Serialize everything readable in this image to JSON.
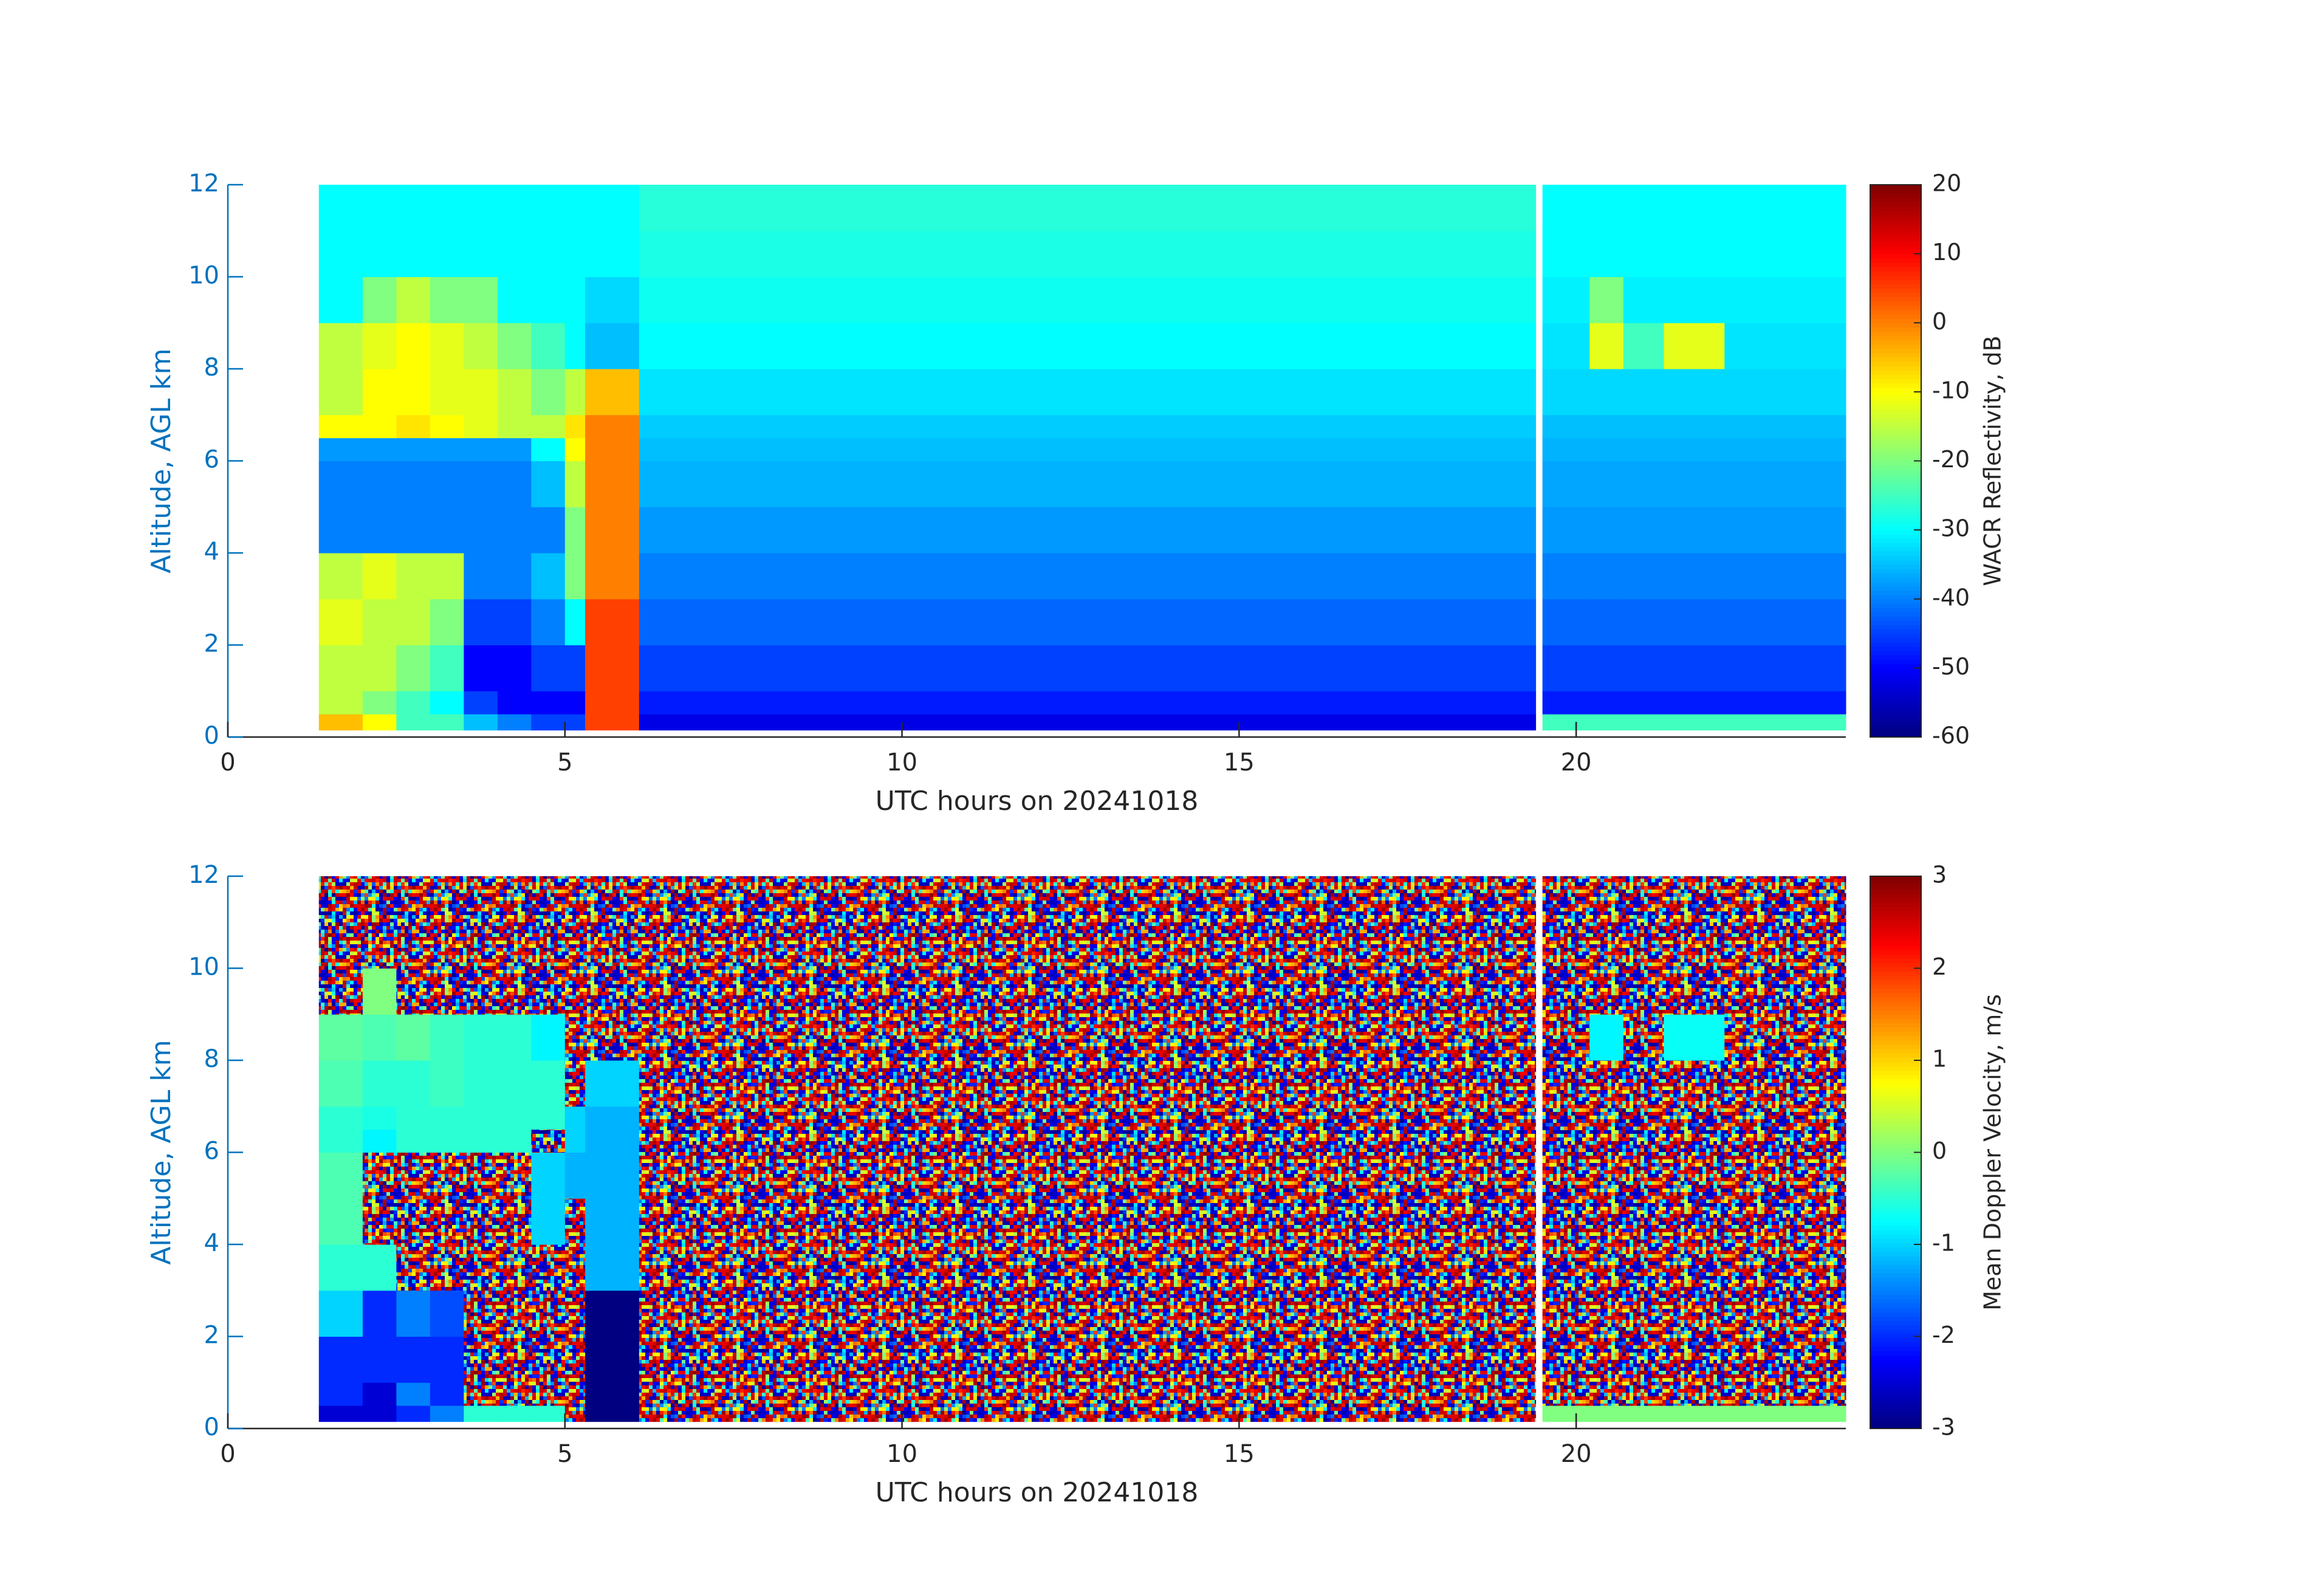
{
  "chart_data": [
    {
      "type": "heatmap",
      "xlabel": "UTC hours on 20241018",
      "ylabel": "Altitude, AGL km",
      "colorbar_label": "WACR Reflectivity, dB",
      "xlim": [
        0,
        24
      ],
      "ylim": [
        0,
        12
      ],
      "xticks": [
        0,
        5,
        10,
        15,
        20
      ],
      "yticks": [
        0,
        2,
        4,
        6,
        8,
        10,
        12
      ],
      "clim": [
        -60,
        20
      ],
      "cticks": [
        -60,
        -50,
        -40,
        -30,
        -20,
        -10,
        0,
        10,
        20
      ],
      "colormap": "jet",
      "xbins": [
        [
          1.35,
          2
        ],
        [
          2,
          2.5
        ],
        [
          2.5,
          3
        ],
        [
          3,
          3.5
        ],
        [
          3.5,
          4
        ],
        [
          4,
          4.5
        ],
        [
          4.5,
          5
        ],
        [
          5,
          5.3
        ],
        [
          5.3,
          6.1
        ],
        [
          6.1,
          19.4
        ],
        [
          19.5,
          20.2
        ],
        [
          20.2,
          20.7
        ],
        [
          20.7,
          21.3
        ],
        [
          21.3,
          22.2
        ],
        [
          22.2,
          24
        ]
      ],
      "ybins": [
        0.15,
        0.5,
        1,
        2,
        3,
        4,
        5,
        6,
        6.5,
        7,
        8,
        9,
        10,
        11,
        12
      ],
      "values": [
        [
          -5,
          -10,
          -25,
          -25,
          -35,
          -40,
          -45,
          -45,
          5,
          -52,
          -25,
          -25,
          -25,
          -25,
          -25
        ],
        [
          -15,
          -20,
          -25,
          -30,
          -45,
          -50,
          -50,
          -50,
          5,
          -48,
          -48,
          -48,
          -48,
          -48,
          -48
        ],
        [
          -15,
          -15,
          -20,
          -25,
          -50,
          -50,
          -45,
          -45,
          5,
          -45,
          -45,
          -45,
          -45,
          -45,
          -45
        ],
        [
          -12,
          -15,
          -15,
          -20,
          -45,
          -45,
          -40,
          -30,
          5,
          -42,
          -42,
          -42,
          -42,
          -42,
          -42
        ],
        [
          -15,
          -12,
          -15,
          -15,
          -40,
          -40,
          -35,
          -20,
          0,
          -40,
          -40,
          -40,
          -40,
          -40,
          -40
        ],
        [
          -40,
          -40,
          -40,
          -40,
          -40,
          -40,
          -40,
          -20,
          0,
          -38,
          -38,
          -38,
          -38,
          -38,
          -38
        ],
        [
          -40,
          -40,
          -40,
          -40,
          -40,
          -40,
          -35,
          -15,
          0,
          -36,
          -37,
          -37,
          -37,
          -37,
          -37
        ],
        [
          -38,
          -38,
          -38,
          -38,
          -38,
          -38,
          -30,
          -10,
          0,
          -35,
          -36,
          -36,
          -36,
          -36,
          -36
        ],
        [
          -10,
          -10,
          -8,
          -10,
          -12,
          -15,
          -15,
          -8,
          0,
          -34,
          -35,
          -35,
          -35,
          -35,
          -35
        ],
        [
          -15,
          -10,
          -10,
          -12,
          -12,
          -15,
          -20,
          -15,
          -5,
          -32,
          -33,
          -33,
          -33,
          -33,
          -33
        ],
        [
          -15,
          -12,
          -10,
          -12,
          -15,
          -20,
          -25,
          -30,
          -35,
          -30,
          -32,
          -12,
          -25,
          -12,
          -32
        ],
        [
          -30,
          -20,
          -15,
          -20,
          -20,
          -30,
          -30,
          -30,
          -33,
          -29,
          -31,
          -20,
          -31,
          -31,
          -31
        ],
        [
          -30,
          -30,
          -30,
          -30,
          -30,
          -30,
          -30,
          -30,
          -30,
          -28,
          -30,
          -30,
          -30,
          -30,
          -30
        ],
        [
          -30,
          -30,
          -30,
          -30,
          -30,
          -30,
          -30,
          -30,
          -30,
          -27,
          -30,
          -30,
          -30,
          -30,
          -30
        ]
      ]
    },
    {
      "type": "heatmap",
      "xlabel": "UTC hours on 20241018",
      "ylabel": "Altitude, AGL km",
      "colorbar_label": "Mean Doppler Velocity, m/s",
      "xlim": [
        0,
        24
      ],
      "ylim": [
        0,
        12
      ],
      "xticks": [
        0,
        5,
        10,
        15,
        20
      ],
      "yticks": [
        0,
        2,
        4,
        6,
        8,
        10,
        12
      ],
      "clim": [
        -3,
        3
      ],
      "cticks": [
        -3,
        -2,
        -1,
        0,
        1,
        2,
        3
      ],
      "colormap": "jet",
      "xbins": [
        [
          1.35,
          2
        ],
        [
          2,
          2.5
        ],
        [
          2.5,
          3
        ],
        [
          3,
          3.5
        ],
        [
          3.5,
          4
        ],
        [
          4,
          4.5
        ],
        [
          4.5,
          5
        ],
        [
          5,
          5.3
        ],
        [
          5.3,
          6.1
        ],
        [
          6.1,
          19.4
        ],
        [
          19.5,
          20.2
        ],
        [
          20.2,
          20.7
        ],
        [
          20.7,
          21.3
        ],
        [
          21.3,
          22.2
        ],
        [
          22.2,
          24
        ]
      ],
      "ybins": [
        0.15,
        0.5,
        1,
        2,
        3,
        4,
        5,
        6,
        6.5,
        7,
        8,
        9,
        10,
        11,
        12
      ],
      "values": [
        [
          -2.5,
          -2.5,
          -2,
          -1.5,
          -0.5,
          -0.5,
          -0.5,
          null,
          -3,
          null,
          0,
          0,
          0,
          0,
          0
        ],
        [
          -2,
          -2.5,
          -1.5,
          -2,
          null,
          null,
          null,
          null,
          -3,
          null,
          null,
          null,
          null,
          null,
          null
        ],
        [
          -2,
          -2,
          -2,
          -2,
          null,
          null,
          null,
          null,
          -3,
          null,
          null,
          null,
          null,
          null,
          null
        ],
        [
          -1,
          -2,
          -1.5,
          -1.8,
          null,
          null,
          null,
          null,
          -3,
          null,
          null,
          null,
          null,
          null,
          null
        ],
        [
          -0.5,
          -0.5,
          null,
          null,
          null,
          null,
          null,
          null,
          -1.2,
          null,
          null,
          null,
          null,
          null,
          null
        ],
        [
          -0.3,
          null,
          null,
          null,
          null,
          null,
          -1,
          null,
          -1.2,
          null,
          null,
          null,
          null,
          null,
          null
        ],
        [
          -0.3,
          null,
          null,
          null,
          null,
          null,
          -1,
          -1.2,
          -1.2,
          null,
          null,
          null,
          null,
          null,
          null
        ],
        [
          -0.5,
          -0.8,
          -0.5,
          -0.5,
          -0.5,
          -0.5,
          null,
          -1,
          -1.2,
          null,
          null,
          null,
          null,
          null,
          null
        ],
        [
          -0.5,
          -0.6,
          -0.5,
          -0.5,
          -0.5,
          -0.5,
          -0.5,
          -1,
          -1.2,
          null,
          null,
          null,
          null,
          null,
          null
        ],
        [
          -0.3,
          -0.5,
          -0.5,
          -0.4,
          -0.5,
          -0.5,
          -0.5,
          null,
          -1,
          null,
          null,
          null,
          null,
          null,
          null
        ],
        [
          -0.2,
          -0.3,
          -0.2,
          -0.4,
          -0.5,
          -0.5,
          -0.8,
          null,
          null,
          null,
          null,
          -0.8,
          null,
          -0.7,
          null
        ],
        [
          null,
          0,
          null,
          null,
          null,
          null,
          null,
          null,
          null,
          null,
          null,
          null,
          null,
          null,
          null
        ],
        [
          null,
          null,
          null,
          null,
          null,
          null,
          null,
          null,
          null,
          null,
          null,
          null,
          null,
          null,
          null
        ],
        [
          null,
          null,
          null,
          null,
          null,
          null,
          null,
          null,
          null,
          null,
          null,
          null,
          null,
          null,
          null
        ]
      ]
    }
  ]
}
